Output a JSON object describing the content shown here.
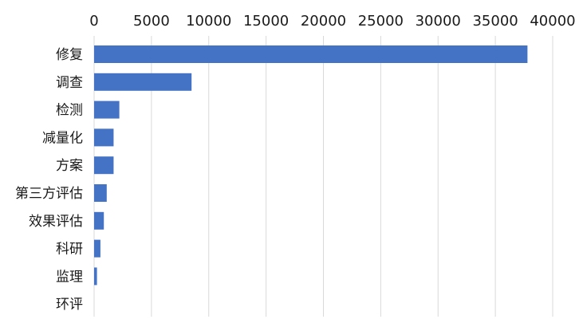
{
  "chart_data": {
    "type": "bar",
    "orientation": "horizontal",
    "categories": [
      "修复",
      "调查",
      "检测",
      "减量化",
      "方案",
      "第三方评估",
      "效果评估",
      "科研",
      "监理",
      "环评"
    ],
    "values": [
      37800,
      8500,
      2200,
      1700,
      1700,
      1100,
      850,
      550,
      250,
      0
    ],
    "x_ticks": [
      0,
      5000,
      10000,
      15000,
      20000,
      25000,
      30000,
      35000,
      40000
    ],
    "xlim": [
      0,
      40000
    ],
    "x_axis_position": "top",
    "grid": true,
    "legend": "none",
    "title": "",
    "xlabel": "",
    "ylabel": "",
    "colors": {
      "bar": "#4472C4",
      "grid": "#D9D9D9",
      "text": "#1a1a1a"
    }
  }
}
